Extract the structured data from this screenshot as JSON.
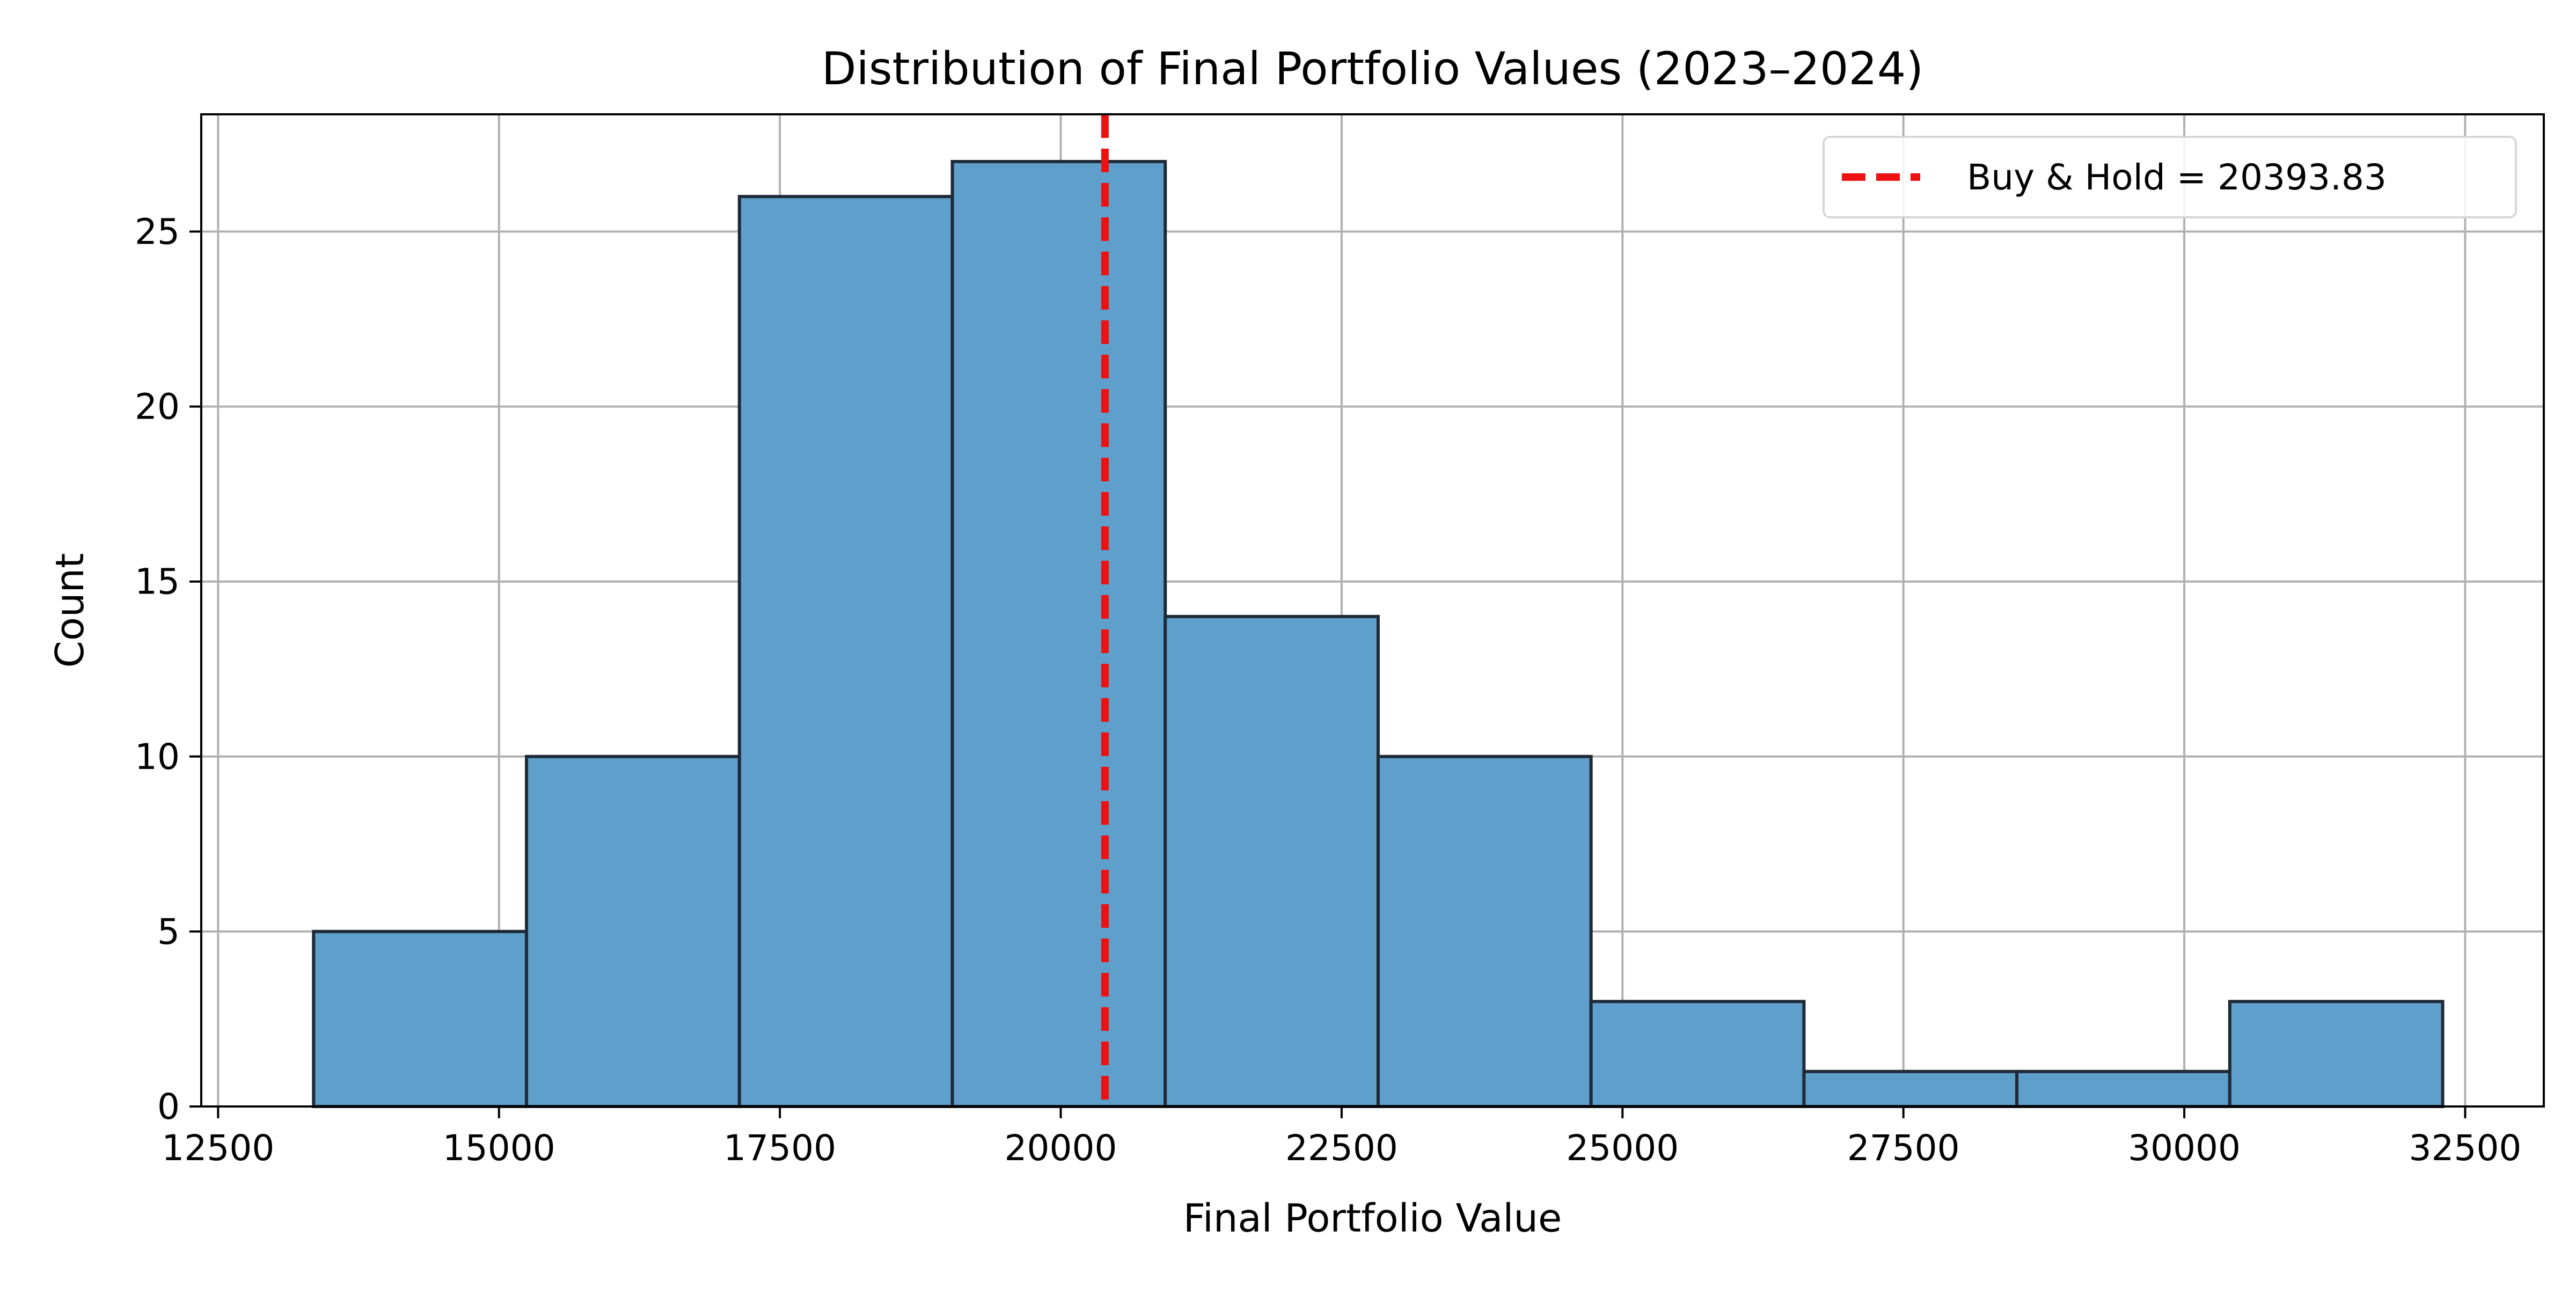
{
  "chart_data": {
    "type": "bar",
    "subtype": "histogram",
    "title": "Distribution of Final Portfolio Values (2023–2024)",
    "xlabel": "Final Portfolio Value",
    "ylabel": "Count",
    "xlim": [
      12350,
      33200
    ],
    "ylim": [
      0,
      28.35
    ],
    "x_ticks": [
      12500,
      15000,
      17500,
      20000,
      22500,
      25000,
      27500,
      30000,
      32500
    ],
    "y_ticks": [
      0,
      5,
      10,
      15,
      20,
      25
    ],
    "bins": [
      {
        "x0": 13350,
        "x1": 15245,
        "count": 5
      },
      {
        "x0": 15245,
        "x1": 17140,
        "count": 10
      },
      {
        "x0": 17140,
        "x1": 19035,
        "count": 26
      },
      {
        "x0": 19035,
        "x1": 20930,
        "count": 27
      },
      {
        "x0": 20930,
        "x1": 22825,
        "count": 14
      },
      {
        "x0": 22825,
        "x1": 24720,
        "count": 10
      },
      {
        "x0": 24720,
        "x1": 26615,
        "count": 3
      },
      {
        "x0": 26615,
        "x1": 28510,
        "count": 1
      },
      {
        "x0": 28510,
        "x1": 30405,
        "count": 1
      },
      {
        "x0": 30405,
        "x1": 32300,
        "count": 3
      }
    ],
    "reference_line": {
      "x": 20393.83,
      "label": "Buy & Hold = 20393.83",
      "color": "#ee1111",
      "style": "dashed"
    },
    "bar_color": "#5f9fcc",
    "bar_edge_color": "#1f2a36",
    "grid": true,
    "legend_position": "top-right"
  }
}
